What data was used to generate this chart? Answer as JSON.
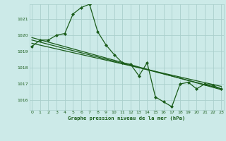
{
  "title": "Graphe pression niveau de la mer (hPa)",
  "bg_color": "#cceae8",
  "grid_color": "#aacfcc",
  "line_color": "#1a5c1a",
  "ylim": [
    1015.4,
    1021.9
  ],
  "yticks": [
    1016,
    1017,
    1018,
    1019,
    1020,
    1021
  ],
  "xlim": [
    -0.3,
    23.3
  ],
  "xticks": [
    0,
    1,
    2,
    3,
    4,
    5,
    6,
    7,
    8,
    9,
    10,
    11,
    12,
    13,
    14,
    15,
    16,
    17,
    18,
    19,
    20,
    21,
    22,
    23
  ],
  "series1": [
    1019.3,
    1019.7,
    1019.7,
    1020.0,
    1020.1,
    1021.3,
    1021.7,
    1021.9,
    1020.2,
    1019.4,
    1018.8,
    1018.3,
    1018.2,
    1017.5,
    1018.3,
    1016.2,
    1015.9,
    1015.6,
    1017.0,
    1017.1,
    1016.7,
    1017.0,
    1016.9,
    1016.7
  ],
  "trend_lines": [
    {
      "x": [
        0,
        23
      ],
      "y": [
        1019.85,
        1016.65
      ]
    },
    {
      "x": [
        0,
        23
      ],
      "y": [
        1019.7,
        1016.7
      ]
    },
    {
      "x": [
        0,
        23
      ],
      "y": [
        1019.5,
        1016.85
      ]
    }
  ]
}
